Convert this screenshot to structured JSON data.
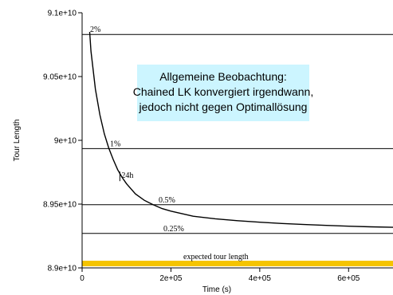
{
  "chart_data": {
    "type": "line",
    "xlabel": "Time (s)",
    "ylabel": "Tour Length",
    "xlim": [
      0,
      700000
    ],
    "ylim": [
      89000000000.0,
      91000000000.0
    ],
    "x_ticks": [
      {
        "value": 0,
        "label": "0"
      },
      {
        "value": 200000,
        "label": "2e+05"
      },
      {
        "value": 400000,
        "label": "4e+05"
      },
      {
        "value": 600000,
        "label": "6e+05"
      }
    ],
    "y_ticks": [
      {
        "value": 89000000000.0,
        "label": "8.9e+10"
      },
      {
        "value": 89500000000.0,
        "label": "8.95e+10"
      },
      {
        "value": 90000000000.0,
        "label": "9e+10"
      },
      {
        "value": 90500000000.0,
        "label": "9.05e+10"
      },
      {
        "value": 91000000000.0,
        "label": "9.1e+10"
      }
    ],
    "series": [
      {
        "x": [
          17000,
          20000,
          25000,
          30000,
          40000,
          50000,
          60000,
          70000,
          80000,
          90000,
          100000,
          120000,
          140000,
          160000,
          180000,
          200000,
          250000,
          300000,
          350000,
          400000,
          450000,
          500000,
          550000,
          600000,
          650000,
          700000
        ],
        "y": [
          90850000000.0,
          90700000000.0,
          90550000000.0,
          90400000000.0,
          90200000000.0,
          90050000000.0,
          89940000000.0,
          89850000000.0,
          89770000000.0,
          89710000000.0,
          89660000000.0,
          89580000000.0,
          89530000000.0,
          89495000000.0,
          89465000000.0,
          89445000000.0,
          89405000000.0,
          89385000000.0,
          89370000000.0,
          89358000000.0,
          89348000000.0,
          89340000000.0,
          89333000000.0,
          89327000000.0,
          89322000000.0,
          89318000000.0
        ],
        "color": "#000000"
      }
    ],
    "reference_lines": [
      {
        "label": "2%",
        "y": 90830000000.0
      },
      {
        "label": "1%",
        "y": 89935000000.0
      },
      {
        "label": "0.5%",
        "y": 89495000000.0
      },
      {
        "label": "0.25%",
        "y": 89270000000.0
      },
      {
        "label": "expected tour length",
        "y": 89050000000.0
      }
    ],
    "highlight": {
      "label": "expected tour length",
      "color": "#f5c400"
    },
    "annotations": [
      {
        "text": "24h",
        "x": 85000,
        "y": 89705000000.0
      }
    ]
  },
  "callout": {
    "lines": [
      "Allgemeine Beobachtung:",
      "Chained LK konvergiert irgendwann,",
      "jedoch nicht gegen Optimallösung"
    ],
    "background": "#ccf5ff"
  }
}
